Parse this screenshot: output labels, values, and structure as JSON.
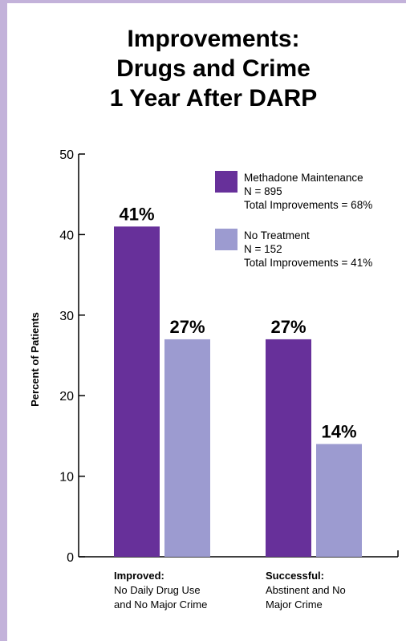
{
  "chart_data": {
    "type": "bar",
    "title": [
      "Improvements:",
      "Drugs and Crime",
      "1 Year After DARP"
    ],
    "ylabel": "Percent of Patients",
    "xlabel": "",
    "ylim": [
      0,
      50
    ],
    "yticks": [
      0,
      10,
      20,
      30,
      40,
      50
    ],
    "categories": [
      [
        "Improved:",
        "No Daily Drug Use",
        "and No Major Crime"
      ],
      [
        "Successful:",
        "Abstinent and No",
        "Major Crime"
      ]
    ],
    "series": [
      {
        "name": "Methadone Maintenance",
        "legend_lines": [
          "Methadone Maintenance",
          "N = 895",
          "Total Improvements = 68%"
        ],
        "color": "#67309a",
        "values": [
          41,
          27
        ],
        "labels": [
          "41%",
          "27%"
        ]
      },
      {
        "name": "No Treatment",
        "legend_lines": [
          "No Treatment",
          "N = 152",
          "Total Improvements = 41%"
        ],
        "color": "#9c9bd0",
        "values": [
          27,
          14
        ],
        "labels": [
          "27%",
          "14%"
        ]
      }
    ],
    "legend_position": "top-right",
    "grid": false
  },
  "frame_color": "#c3b2da"
}
